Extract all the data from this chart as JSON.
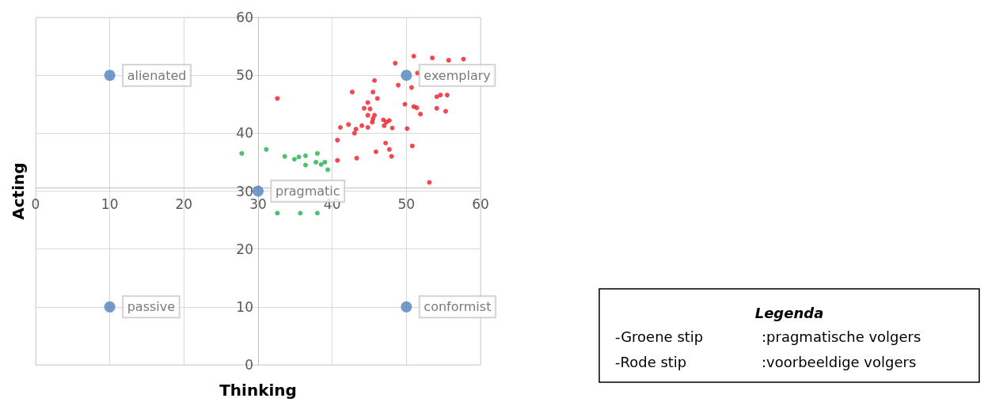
{
  "chart_data": {
    "type": "scatter",
    "xlabel": "Thinking",
    "ylabel": "Acting",
    "xlim": [
      0,
      60
    ],
    "xticks": [
      0,
      10,
      20,
      30,
      40,
      50,
      60
    ],
    "ylim": [
      0,
      60
    ],
    "yticks": [
      0,
      10,
      20,
      30,
      40,
      50,
      60
    ],
    "grid": true,
    "marker": "circle",
    "series": [
      {
        "color": "#4f81bd",
        "x": [
          10,
          50,
          30,
          10,
          50
        ],
        "values": [
          50,
          50,
          30,
          10,
          10
        ],
        "value_labels": [
          "alienated",
          "exemplary",
          "pragmatic",
          "passive",
          "conformist"
        ]
      },
      {
        "color": "#22b14c",
        "x": [
          27.8,
          31.1,
          33.6,
          34.9,
          35.5,
          36.4,
          36.4,
          38.0,
          37.8,
          38.5,
          39.0,
          39.4,
          32.6,
          35.7,
          38.0
        ],
        "values": [
          36.5,
          37.2,
          36.0,
          35.5,
          35.9,
          36.1,
          34.5,
          36.5,
          35.0,
          34.6,
          35.0,
          33.7,
          26.2,
          26.2,
          26.2
        ]
      },
      {
        "color": "#ee1c25",
        "x": [
          32.6,
          40.7,
          40.7,
          41.1,
          42.2,
          42.7,
          43.0,
          43.2,
          43.3,
          44.0,
          44.3,
          44.8,
          44.8,
          44.8,
          45.1,
          45.5,
          45.7,
          45.4,
          45.7,
          45.5,
          46.1,
          45.9,
          46.9,
          47.2,
          47.0,
          47.3,
          47.7,
          48.0,
          47.7,
          48.1,
          48.5,
          48.9,
          49.8,
          50.1,
          50.7,
          50.8,
          51.0,
          51.5,
          51.0,
          51.4,
          51.9,
          53.1,
          53.5,
          54.1,
          54.6,
          54.1,
          55.5,
          55.3,
          55.7,
          57.7
        ],
        "values": [
          46.0,
          38.8,
          35.3,
          41.0,
          41.5,
          47.1,
          40.0,
          40.7,
          35.7,
          41.3,
          44.3,
          45.3,
          43.1,
          41.0,
          44.2,
          42.5,
          43.1,
          41.9,
          49.1,
          47.1,
          46.0,
          36.8,
          42.3,
          38.3,
          41.3,
          41.9,
          37.2,
          36.0,
          42.2,
          40.9,
          52.1,
          48.3,
          45.0,
          40.8,
          47.9,
          37.8,
          53.3,
          50.4,
          44.6,
          44.4,
          43.3,
          31.5,
          53.0,
          46.3,
          46.6,
          44.3,
          46.6,
          43.8,
          52.6,
          52.8
        ]
      }
    ],
    "annotations": [
      "Legenda",
      "-Groene stip",
      ":pragmatische volgers",
      "-Rode stip",
      ":voorbeeldige volgers"
    ]
  }
}
